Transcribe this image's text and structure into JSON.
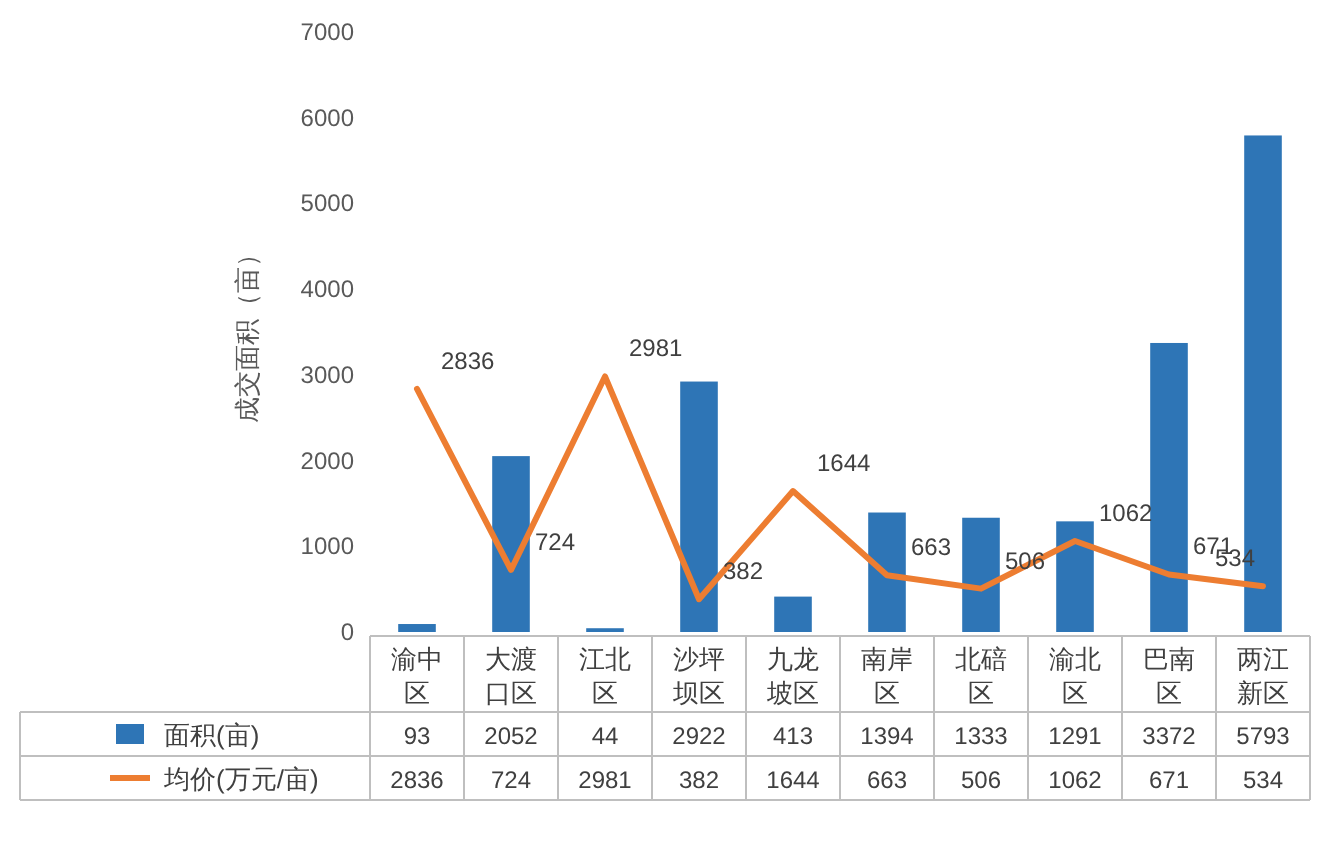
{
  "chart_data": {
    "type": "bar",
    "ylabel": "成交面积（亩）",
    "categories": [
      "渝中区",
      "大渡口区",
      "江北区",
      "沙坪坝区",
      "九龙坡区",
      "南岸区",
      "北碚区",
      "渝北区",
      "巴南区",
      "两江新区"
    ],
    "series": [
      {
        "name": "面积(亩)",
        "color": "#2e75b6",
        "values": [
          93,
          2052,
          44,
          2922,
          413,
          1394,
          1333,
          1291,
          3372,
          5793
        ]
      },
      {
        "name": "均价(万元/亩)",
        "type": "line",
        "color": "#ed7d31",
        "values": [
          2836,
          724,
          2981,
          382,
          1644,
          663,
          506,
          1062,
          671,
          534
        ],
        "value_labels": [
          "2836",
          "724",
          "2981",
          "382",
          "1644",
          "663",
          "506",
          "1062",
          "671",
          "534"
        ]
      }
    ],
    "ylim": [
      0,
      7000
    ],
    "yticks": [
      0,
      1000,
      2000,
      3000,
      4000,
      5000,
      6000,
      7000
    ],
    "data_labels": true,
    "legend": "bottom",
    "grid": false
  }
}
